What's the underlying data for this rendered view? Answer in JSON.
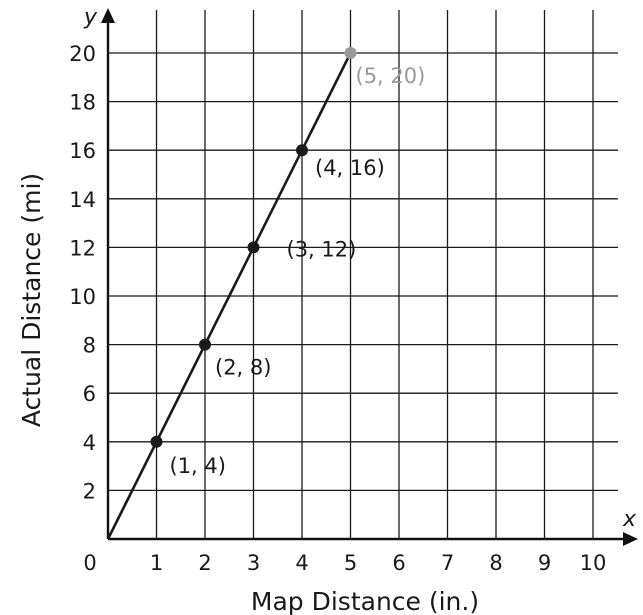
{
  "chart_data": {
    "type": "line",
    "xlabel": "Map Distance (in.)",
    "ylabel": "Actual Distance (mi)",
    "x_axis_var": "x",
    "y_axis_var": "y",
    "xlim": [
      0,
      10
    ],
    "ylim": [
      0,
      20
    ],
    "x_ticks": [
      "0",
      "1",
      "2",
      "3",
      "4",
      "5",
      "6",
      "7",
      "8",
      "9",
      "10"
    ],
    "y_ticks": [
      "2",
      "4",
      "6",
      "8",
      "10",
      "12",
      "14",
      "16",
      "18",
      "20"
    ],
    "grid": true,
    "line": {
      "x": [
        0,
        5
      ],
      "y": [
        0,
        20
      ],
      "color": "#1a1a1a"
    },
    "points": [
      {
        "x": 1,
        "y": 4,
        "label": "(1, 4)",
        "color": "#1a1a1a"
      },
      {
        "x": 2,
        "y": 8,
        "label": "(2, 8)",
        "color": "#1a1a1a"
      },
      {
        "x": 3,
        "y": 12,
        "label": "(3, 12)",
        "color": "#1a1a1a"
      },
      {
        "x": 4,
        "y": 16,
        "label": "(4, 16)",
        "color": "#1a1a1a"
      },
      {
        "x": 5,
        "y": 20,
        "label": "(5, 20)",
        "color": "#9a9a9a"
      }
    ]
  }
}
